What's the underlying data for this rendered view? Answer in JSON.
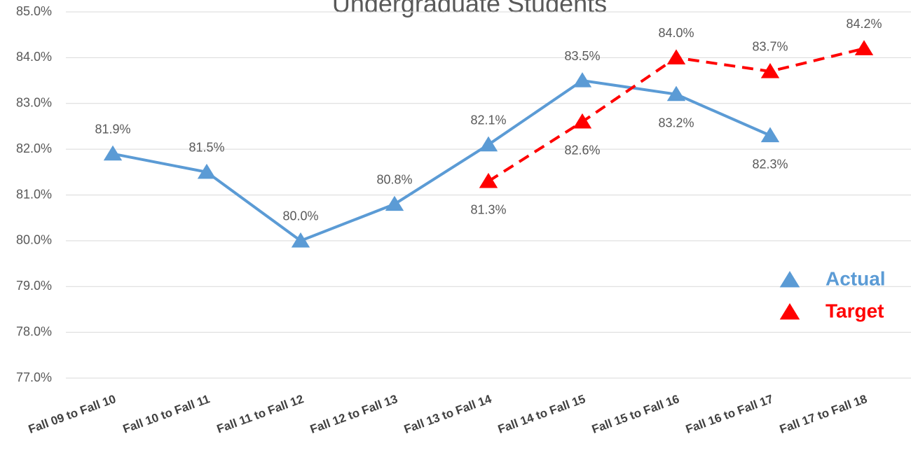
{
  "chart_data": {
    "type": "line",
    "title": "Undergraduate Students",
    "categories": [
      "Fall 09 to Fall 10",
      "Fall 10 to Fall 11",
      "Fall 11 to Fall 12",
      "Fall 12 to Fall 13",
      "Fall 13 to Fall 14",
      "Fall 14 to Fall 15",
      "Fall 15 to Fall 16",
      "Fall 16 to Fall 17",
      "Fall 17 to Fall 18"
    ],
    "series": [
      {
        "name": "Actual",
        "color": "#5b9bd5",
        "dashed": false,
        "values": [
          81.9,
          81.5,
          80.0,
          80.8,
          82.1,
          83.5,
          83.2,
          82.3,
          null
        ],
        "value_labels": [
          "81.9%",
          "81.5%",
          "80.0%",
          "80.8%",
          "82.1%",
          "83.5%",
          "83.2%",
          "82.3%",
          null
        ]
      },
      {
        "name": "Target",
        "color": "#ff0000",
        "dashed": true,
        "values": [
          null,
          null,
          null,
          null,
          81.3,
          82.6,
          84.0,
          83.7,
          84.2
        ],
        "value_labels": [
          null,
          null,
          null,
          null,
          "81.3%",
          "82.6%",
          "84.0%",
          "83.7%",
          "84.2%"
        ]
      }
    ],
    "ylim": [
      77,
      85
    ],
    "yticks": [
      {
        "value": 77,
        "label": "77.0%"
      },
      {
        "value": 78,
        "label": "78.0%"
      },
      {
        "value": 79,
        "label": "79.0%"
      },
      {
        "value": 80,
        "label": "80.0%"
      },
      {
        "value": 81,
        "label": "81.0%"
      },
      {
        "value": 82,
        "label": "82.0%"
      },
      {
        "value": 83,
        "label": "83.0%"
      },
      {
        "value": 84,
        "label": "84.0%"
      },
      {
        "value": 85,
        "label": "85.0%"
      }
    ],
    "grid": true,
    "legend": "right"
  }
}
